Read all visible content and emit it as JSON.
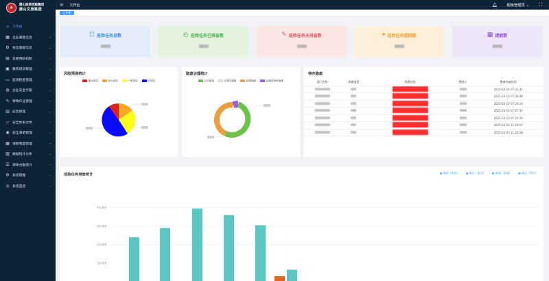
{
  "app": {
    "logo_badge": "★",
    "logo_line1": "唐山投资控股集团",
    "logo_line2": "唐山文旅集团"
  },
  "topbar": {
    "breadcrumb": "工作台",
    "user": "超级管理员 ⌄"
  },
  "tabs": [
    {
      "label": "工作台"
    }
  ],
  "sidebar": {
    "items": [
      {
        "label": "工作台",
        "icon": "home-icon",
        "glyph": "⌂",
        "active": true
      },
      {
        "label": "企业基础信息",
        "icon": "building-icon",
        "glyph": "▦"
      },
      {
        "label": "安全基础信息",
        "icon": "gear-icon",
        "glyph": "⚙"
      },
      {
        "label": "双重预防机制",
        "icon": "book-icon",
        "glyph": "▤"
      },
      {
        "label": "教育培训管理",
        "icon": "document-icon",
        "glyph": "▣"
      },
      {
        "label": "监测检查管理",
        "icon": "monitor-icon",
        "glyph": "▭"
      },
      {
        "label": "企业安全手册",
        "icon": "handbook-icon",
        "glyph": "◍"
      },
      {
        "label": "特殊作业管理",
        "icon": "tools-icon",
        "glyph": "✎"
      },
      {
        "label": "应急管理",
        "icon": "emergency-icon",
        "glyph": "▥"
      },
      {
        "label": "安全体系文件",
        "icon": "folder-icon",
        "glyph": "▱"
      },
      {
        "label": "安全承诺管理",
        "icon": "lock-icon",
        "glyph": "◉"
      },
      {
        "label": "请假制度管理",
        "icon": "calendar-icon",
        "glyph": "▦"
      },
      {
        "label": "数据统计分析",
        "icon": "chart-icon",
        "glyph": "▧"
      },
      {
        "label": "清单台账统计",
        "icon": "list-icon",
        "glyph": "☰"
      },
      {
        "label": "系统管理",
        "icon": "settings-icon",
        "glyph": "⚙"
      },
      {
        "label": "系统监控",
        "icon": "monitor-icon",
        "glyph": "◎"
      }
    ]
  },
  "stats": [
    {
      "title": "巡检任务总数",
      "icon": "task-list-icon",
      "glyph": "☷",
      "bg": "#e3ecf8",
      "color": "#3a8ee6"
    },
    {
      "title": "巡检任务已排查数",
      "icon": "check-clock-icon",
      "glyph": "◴",
      "bg": "#e3f3df",
      "color": "#4caf50"
    },
    {
      "title": "巡检任务未排查数",
      "icon": "edit-document-icon",
      "glyph": "✎",
      "bg": "#fbe6e6",
      "color": "#e45656"
    },
    {
      "title": "巡检任务超期数",
      "icon": "location-pin-icon",
      "glyph": "⌖",
      "bg": "#fcefdc",
      "color": "#f0a030"
    },
    {
      "title": "请假数",
      "icon": "calendar-icon",
      "glyph": "▦",
      "bg": "#ece6f8",
      "color": "#8a4fd8"
    }
  ],
  "panels": {
    "risk_title": "风险预测统计",
    "hazard_title": "隐患治理统计",
    "todo_title": "待办隐患",
    "rank_title": "巡检任务排查统计"
  },
  "risk_legend": [
    {
      "label": "重大风险",
      "color": "#e02020"
    },
    {
      "label": "较大风险",
      "color": "#f5a623"
    },
    {
      "label": "一般风险",
      "color": "#ffff1a"
    },
    {
      "label": "低风险",
      "color": "#0a0aff"
    }
  ],
  "hazard_legend": [
    {
      "label": "已办隐患",
      "color": "#6cc24a"
    },
    {
      "label": "办理中隐患",
      "color": "#f0f0f0"
    },
    {
      "label": "超期隐患",
      "color": "#e8a040"
    },
    {
      "label": "延期待审批隐患",
      "color": "#9a62e0"
    }
  ],
  "todo": {
    "columns": [
      "部门名称",
      "隐患类型",
      "隐患状态",
      "整改人",
      "整改完成时间"
    ],
    "rows": [
      {
        "time": "2025-03-10 07:31:41"
      },
      {
        "time": "2025-03-10 07:30:46"
      },
      {
        "time": "2025-03-10 07:29:10"
      },
      {
        "time": "2025-03-10 07:27:37"
      },
      {
        "time": "2025-03-10 07:26:30"
      },
      {
        "time": "2025-03-03 11:29:07"
      },
      {
        "time": "2025-03-03 11:28:18"
      }
    ]
  },
  "range_tabs": [
    {
      "label": "每年（本年）",
      "icon": "calendar-icon"
    },
    {
      "label": "每月（本月）",
      "icon": "calendar-icon"
    },
    {
      "label": "每周（本周）",
      "icon": "calendar-icon"
    },
    {
      "label": "每日（今天）",
      "icon": "calendar-icon"
    }
  ],
  "chart_data": {
    "type": "bar",
    "ylim": [
      0,
      45000
    ],
    "yticks": [
      "40,000",
      "30,000",
      "20,000",
      "10,000"
    ],
    "bars": [
      {
        "value": 24000,
        "color": "#5cc6c3"
      },
      {
        "value": 29000,
        "color": "#5cc6c3"
      },
      {
        "value": 39500,
        "color": "#5cc6c3"
      },
      {
        "value": 36000,
        "color": "#5cc6c3"
      },
      {
        "value": 30500,
        "color": "#5cc6c3"
      },
      {
        "value": 3000,
        "color": "#e8621e"
      },
      {
        "value": 6500,
        "color": "#5cc6c3"
      }
    ]
  }
}
